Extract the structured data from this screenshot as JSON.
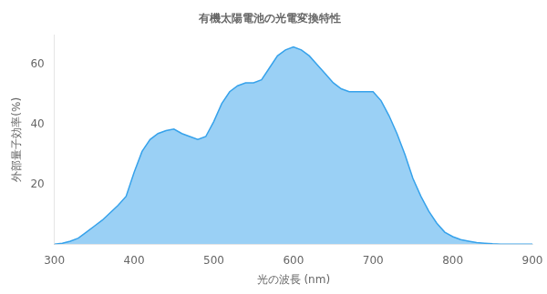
{
  "chart_data": {
    "type": "line",
    "title": "有機太陽電池の光電変換特性",
    "xlabel": "光の波長 (nm)",
    "ylabel": "外部量子効率(%)",
    "x": [
      300,
      310,
      320,
      330,
      340,
      350,
      360,
      370,
      380,
      390,
      400,
      410,
      420,
      430,
      440,
      450,
      460,
      470,
      480,
      490,
      500,
      510,
      520,
      530,
      540,
      550,
      560,
      570,
      580,
      590,
      600,
      610,
      620,
      630,
      640,
      650,
      660,
      670,
      680,
      690,
      700,
      710,
      720,
      730,
      740,
      750,
      760,
      770,
      780,
      790,
      800,
      810,
      820,
      830,
      840,
      850,
      860,
      870,
      880,
      890,
      900
    ],
    "values": [
      0,
      0.3,
      1.0,
      2.0,
      4.0,
      6.0,
      8.0,
      10.5,
      13.0,
      16.0,
      24,
      31,
      35,
      37,
      38,
      38.5,
      37,
      36,
      35,
      36,
      41,
      47,
      51,
      53,
      54,
      54,
      55,
      59,
      63,
      65,
      66,
      65,
      63,
      60,
      57,
      54,
      52,
      51,
      51,
      51,
      51,
      48,
      43,
      37,
      30,
      22,
      16,
      11,
      7,
      4,
      2.5,
      1.5,
      1.0,
      0.5,
      0.3,
      0.1,
      0,
      0,
      0,
      0,
      0
    ],
    "xlim": [
      300,
      900
    ],
    "xticks": [
      300,
      400,
      500,
      600,
      700,
      800,
      900
    ],
    "ylim": [
      0,
      70
    ],
    "yticks": [
      20,
      40,
      60
    ],
    "grid": false
  }
}
